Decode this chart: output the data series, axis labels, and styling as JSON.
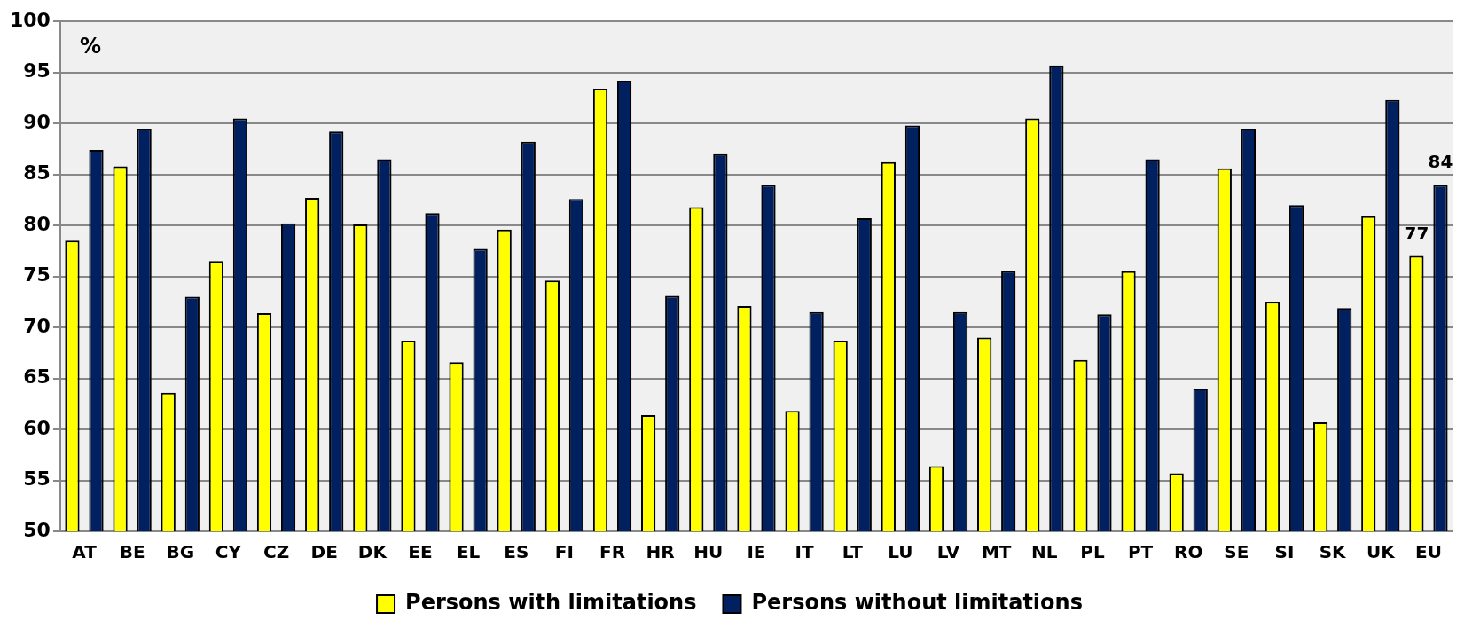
{
  "chart_data": {
    "type": "bar",
    "categories": [
      "AT",
      "BE",
      "BG",
      "CY",
      "CZ",
      "DE",
      "DK",
      "EE",
      "EL",
      "ES",
      "FI",
      "FR",
      "HR",
      "HU",
      "IE",
      "IT",
      "LT",
      "LU",
      "LV",
      "MT",
      "NL",
      "PL",
      "PT",
      "RO",
      "SE",
      "SI",
      "SK",
      "UK",
      "EU"
    ],
    "series": [
      {
        "name": "Persons with limitations",
        "color": "#ffff00",
        "values": [
          78.5,
          85.8,
          63.6,
          76.5,
          71.4,
          82.7,
          80.1,
          68.7,
          66.6,
          79.6,
          74.6,
          93.4,
          61.4,
          81.8,
          72.1,
          61.8,
          68.7,
          86.2,
          56.4,
          69.0,
          90.5,
          66.8,
          75.5,
          55.7,
          85.6,
          72.5,
          60.7,
          80.9,
          77
        ],
        "value_labels": [
          null,
          null,
          null,
          null,
          null,
          null,
          null,
          null,
          null,
          null,
          null,
          null,
          null,
          null,
          null,
          null,
          null,
          null,
          null,
          null,
          null,
          null,
          null,
          null,
          null,
          null,
          null,
          null,
          "77"
        ]
      },
      {
        "name": "Persons without limitations",
        "color": "#002060",
        "values": [
          87.4,
          89.5,
          73.0,
          90.5,
          80.2,
          89.2,
          86.5,
          81.2,
          77.7,
          88.2,
          82.6,
          94.2,
          73.1,
          87.0,
          84.0,
          71.5,
          80.7,
          89.8,
          71.5,
          75.5,
          95.7,
          71.3,
          86.5,
          64.0,
          89.5,
          82.0,
          71.9,
          92.3,
          84
        ],
        "value_labels": [
          null,
          null,
          null,
          null,
          null,
          null,
          null,
          null,
          null,
          null,
          null,
          null,
          null,
          null,
          null,
          null,
          null,
          null,
          null,
          null,
          null,
          null,
          null,
          null,
          null,
          null,
          null,
          null,
          "84"
        ]
      }
    ],
    "ylim": [
      50,
      100
    ],
    "yticks": [
      50,
      55,
      60,
      65,
      70,
      75,
      80,
      85,
      90,
      95,
      100
    ],
    "grid": "y",
    "legend": "bottom",
    "annotations": [
      "%"
    ]
  }
}
